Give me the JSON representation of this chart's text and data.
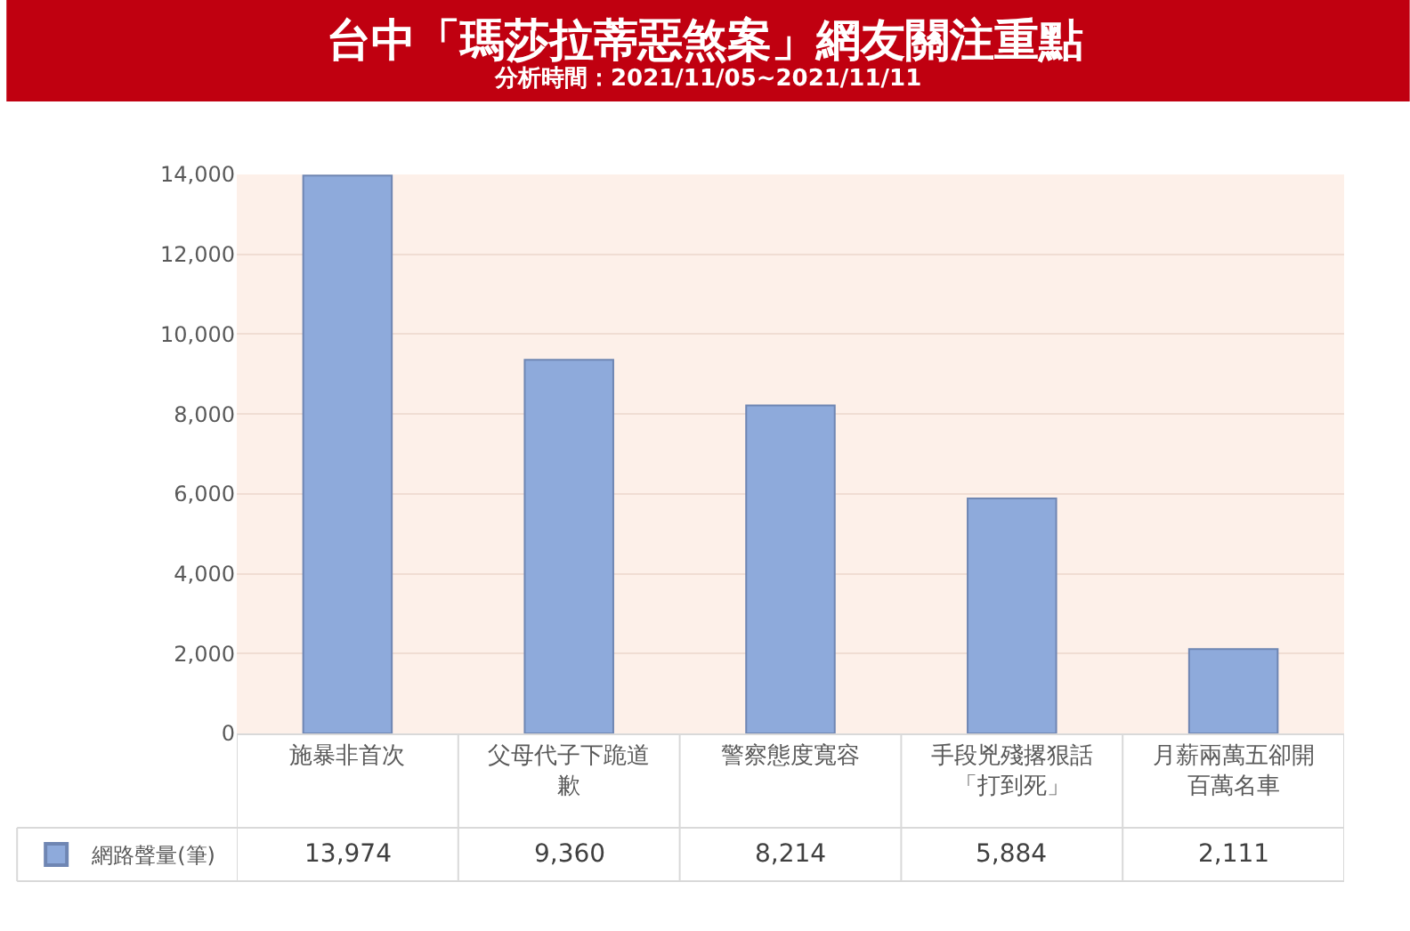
{
  "chart_data": {
    "type": "bar",
    "title": "台中「瑪莎拉蒂惡煞案」網友關注重點",
    "subtitle": "分析時間：2021/11/05~2021/11/11",
    "categories": [
      "施暴非首次",
      "父母代子下跪道歉",
      "警察態度寬容",
      "手段兇殘撂狠話「打到死」",
      "月薪兩萬五卻開百萬名車"
    ],
    "series": [
      {
        "name": "網路聲量(筆)",
        "color": "#8eaadb",
        "values": [
          13974,
          9360,
          8214,
          5884,
          2111
        ],
        "value_labels": [
          "13,974",
          "9,360",
          "8,214",
          "5,884",
          "2,111"
        ]
      }
    ],
    "ylim": [
      0,
      14000
    ],
    "yticks": [
      0,
      {
        "value": 2000,
        "label": "2,000"
      },
      {
        "value": 4000,
        "label": "4,000"
      },
      {
        "value": 6000,
        "label": "6,000"
      },
      {
        "value": 8000,
        "label": "8,000"
      },
      {
        "value": 10000,
        "label": "10,000"
      },
      {
        "value": 12000,
        "label": "12,000"
      },
      {
        "value": 14000,
        "label": "14,000"
      }
    ],
    "grid": "y",
    "legend": "bottom left"
  }
}
